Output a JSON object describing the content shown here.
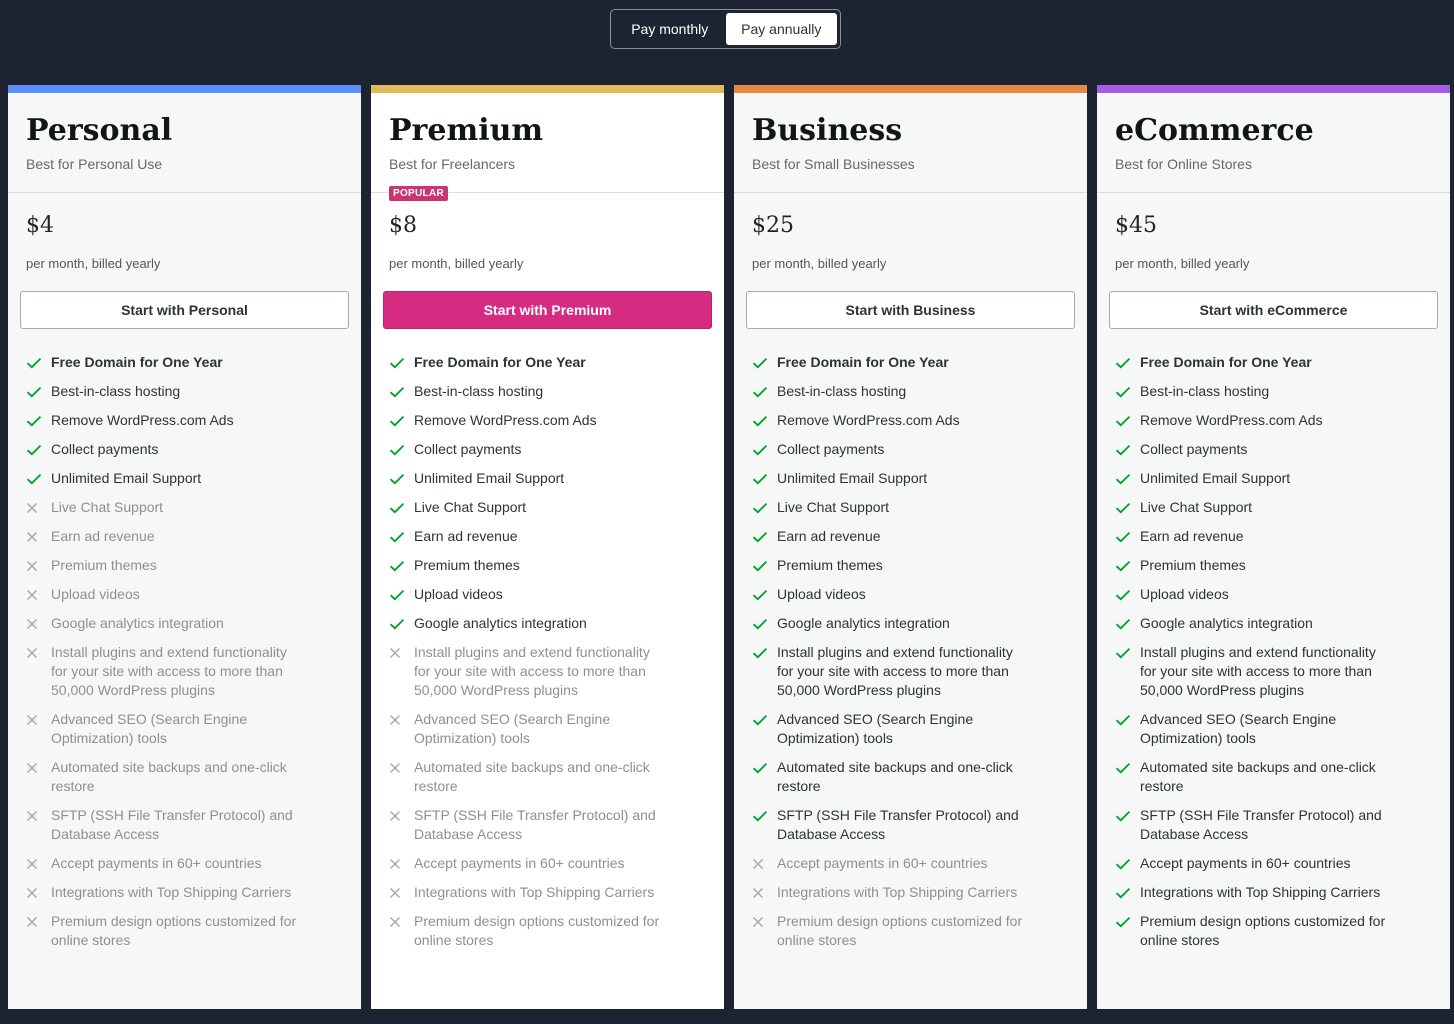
{
  "billing_toggle": {
    "monthly": "Pay monthly",
    "annually": "Pay annually",
    "selected": "annually"
  },
  "feature_labels": [
    "Free Domain for One Year",
    "Best-in-class hosting",
    "Remove WordPress.com Ads",
    "Collect payments",
    "Unlimited Email Support",
    "Live Chat Support",
    "Earn ad revenue",
    "Premium themes",
    "Upload videos",
    "Google analytics integration",
    "Install plugins and extend functionality for your site with access to more than 50,000 WordPress plugins",
    "Advanced SEO (Search Engine Optimization) tools",
    "Automated site backups and one-click restore",
    "SFTP (SSH File Transfer Protocol) and Database Access",
    "Accept payments in 60+ countries",
    "Integrations with Top Shipping Carriers",
    "Premium design options customized for online stores"
  ],
  "plans": [
    {
      "name": "Personal",
      "tagline": "Best for Personal Use",
      "price": "$4",
      "billing": "per month, billed yearly",
      "cta": "Start with Personal",
      "accent": "#5b8ff9",
      "featured": false,
      "badge": "",
      "included": [
        true,
        true,
        true,
        true,
        true,
        false,
        false,
        false,
        false,
        false,
        false,
        false,
        false,
        false,
        false,
        false,
        false
      ]
    },
    {
      "name": "Premium",
      "tagline": "Best for Freelancers",
      "price": "$8",
      "billing": "per month, billed yearly",
      "cta": "Start with Premium",
      "accent": "#e0bc5a",
      "featured": true,
      "badge": "POPULAR",
      "included": [
        true,
        true,
        true,
        true,
        true,
        true,
        true,
        true,
        true,
        true,
        false,
        false,
        false,
        false,
        false,
        false,
        false
      ]
    },
    {
      "name": "Business",
      "tagline": "Best for Small Businesses",
      "price": "$25",
      "billing": "per month, billed yearly",
      "cta": "Start with Business",
      "accent": "#e68b47",
      "featured": false,
      "badge": "",
      "included": [
        true,
        true,
        true,
        true,
        true,
        true,
        true,
        true,
        true,
        true,
        true,
        true,
        true,
        true,
        false,
        false,
        false
      ]
    },
    {
      "name": "eCommerce",
      "tagline": "Best for Online Stores",
      "price": "$45",
      "billing": "per month, billed yearly",
      "cta": "Start with eCommerce",
      "accent": "#a45ce6",
      "featured": false,
      "badge": "",
      "included": [
        true,
        true,
        true,
        true,
        true,
        true,
        true,
        true,
        true,
        true,
        true,
        true,
        true,
        true,
        true,
        true,
        true
      ]
    }
  ],
  "colors": {
    "check": "#00a32a",
    "cross": "#a7aaad",
    "primary_cta": "#d52c82",
    "background": "#1d2330"
  },
  "icons": {
    "included": "checkmark-icon",
    "excluded": "cross-icon"
  }
}
